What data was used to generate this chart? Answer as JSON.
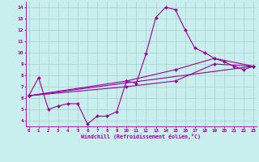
{
  "background_color": "#c8eeee",
  "line_color": "#990099",
  "grid_color": "#aacccc",
  "xlabel": "Windchill (Refroidissement éolien,°C)",
  "xlabel_color": "#990099",
  "xmin": 0,
  "xmax": 23,
  "ymin": 3.5,
  "ymax": 14.5,
  "yticks": [
    4,
    5,
    6,
    7,
    8,
    9,
    10,
    11,
    12,
    13,
    14
  ],
  "xticks": [
    0,
    1,
    2,
    3,
    4,
    5,
    6,
    7,
    8,
    9,
    10,
    11,
    12,
    13,
    14,
    15,
    16,
    17,
    18,
    19,
    20,
    21,
    22,
    23
  ],
  "main_x": [
    0,
    1,
    2,
    3,
    4,
    5,
    6,
    7,
    8,
    9,
    10,
    11,
    12,
    13,
    14,
    15,
    16,
    17,
    18,
    19,
    20,
    21,
    22,
    23
  ],
  "main_y": [
    6.2,
    7.8,
    5.0,
    5.3,
    5.5,
    5.5,
    3.7,
    4.4,
    4.4,
    4.8,
    7.5,
    7.3,
    9.9,
    13.1,
    14.0,
    13.8,
    12.0,
    10.4,
    10.0,
    9.5,
    9.2,
    8.8,
    8.5,
    8.8
  ],
  "trend1_x": [
    0,
    23
  ],
  "trend1_y": [
    6.2,
    8.8
  ],
  "trend2_x": [
    0,
    10,
    15,
    19,
    23
  ],
  "trend2_y": [
    6.2,
    7.5,
    8.5,
    9.5,
    8.8
  ],
  "trend3_x": [
    0,
    10,
    15,
    19,
    23
  ],
  "trend3_y": [
    6.2,
    7.0,
    7.5,
    9.0,
    8.8
  ],
  "lw": 0.8,
  "ms": 2.0,
  "tick_labelsize": 4.2,
  "xlabel_fontsize": 4.8
}
